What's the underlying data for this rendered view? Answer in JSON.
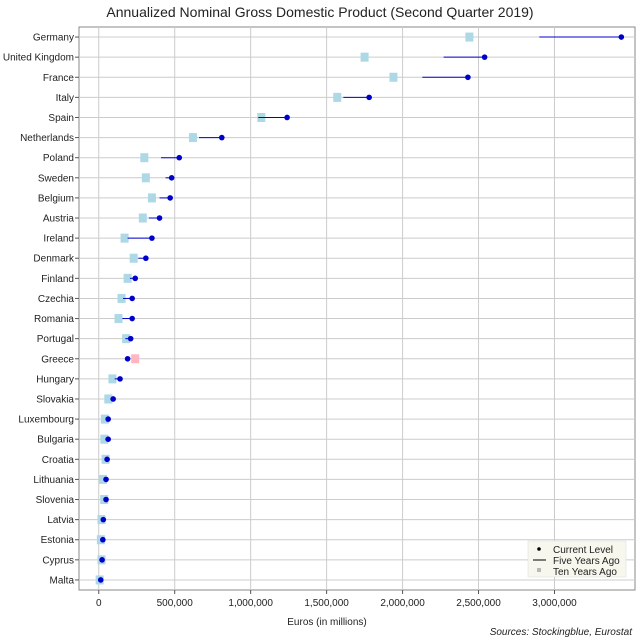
{
  "chart_data": {
    "type": "dot-range",
    "title": "Annualized Nominal Gross Domestic Product (Second Quarter 2019)",
    "xlabel": "Euros (in millions)",
    "source": "Sources: Stockingblue, Eurostat",
    "xlim": [
      -130000,
      3530000
    ],
    "xticks": [
      0,
      500000,
      1000000,
      1500000,
      2000000,
      2500000,
      3000000
    ],
    "xtick_labels": [
      "0",
      "500,000",
      "1,000,000",
      "1,500,000",
      "2,000,000",
      "2,500,000",
      "3,000,000"
    ],
    "grid": true,
    "legend": {
      "position": "bottom-right",
      "entries": [
        "Current Level",
        "Five Years Ago",
        "Ten Years Ago"
      ]
    },
    "colors": {
      "current": "#0000cd",
      "five_years": "#0000cd",
      "ten_years": "#add8e6",
      "ten_years_higher": "#ffb6c1",
      "grid": "#cccccc"
    },
    "categories": [
      "Germany",
      "United Kingdom",
      "France",
      "Italy",
      "Spain",
      "Netherlands",
      "Poland",
      "Sweden",
      "Belgium",
      "Austria",
      "Ireland",
      "Denmark",
      "Finland",
      "Czechia",
      "Romania",
      "Portugal",
      "Greece",
      "Hungary",
      "Slovakia",
      "Luxembourg",
      "Bulgaria",
      "Croatia",
      "Lithuania",
      "Slovenia",
      "Latvia",
      "Estonia",
      "Cyprus",
      "Malta"
    ],
    "series": [
      {
        "name": "Current Level",
        "values": [
          3440000,
          2540000,
          2430000,
          1780000,
          1240000,
          810000,
          530000,
          480000,
          470000,
          400000,
          350000,
          310000,
          240000,
          220000,
          220000,
          210000,
          190000,
          140000,
          95000,
          62000,
          62000,
          55000,
          48000,
          48000,
          30000,
          27000,
          22000,
          13000
        ]
      },
      {
        "name": "Five Years Ago",
        "values": [
          2900000,
          2270000,
          2130000,
          1610000,
          1050000,
          660000,
          410000,
          440000,
          400000,
          330000,
          190000,
          260000,
          205000,
          160000,
          155000,
          175000,
          180000,
          105000,
          76000,
          50000,
          43000,
          43000,
          36000,
          37000,
          23000,
          19000,
          18000,
          8000
        ]
      },
      {
        "name": "Ten Years Ago",
        "values": [
          2440000,
          1750000,
          1940000,
          1570000,
          1070000,
          620000,
          300000,
          310000,
          350000,
          290000,
          170000,
          230000,
          190000,
          150000,
          130000,
          180000,
          240000,
          90000,
          63000,
          40000,
          37000,
          45000,
          27000,
          36000,
          18000,
          14000,
          18000,
          6000
        ]
      }
    ]
  }
}
